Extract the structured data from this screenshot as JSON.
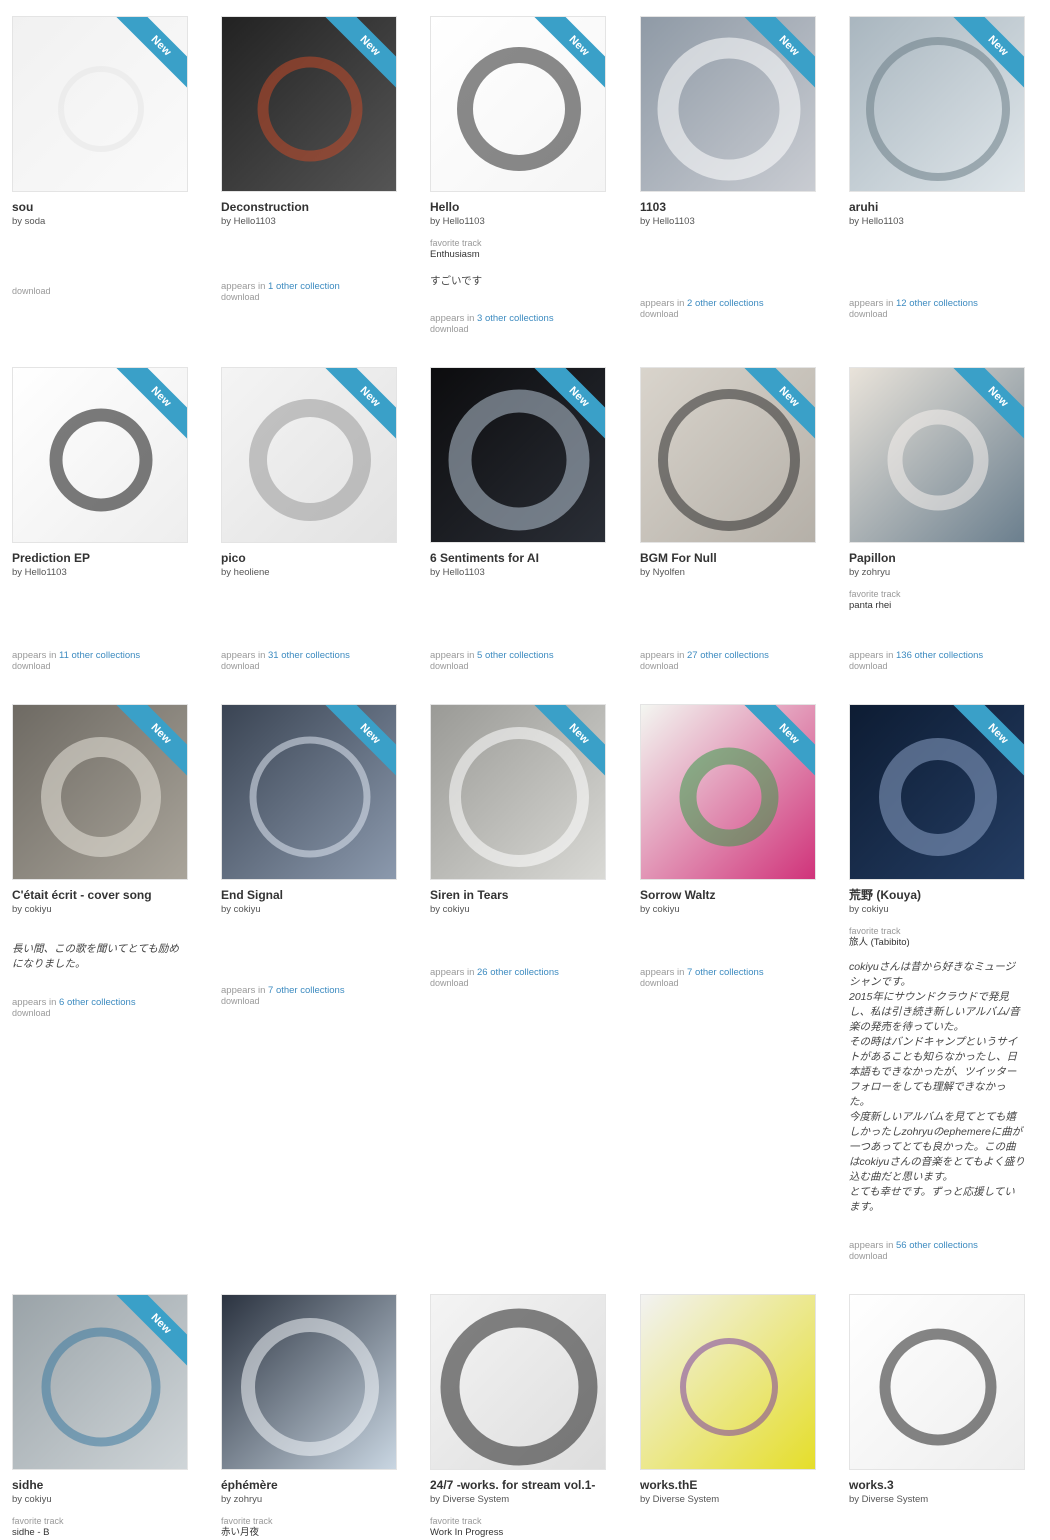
{
  "ribbon_label": "New",
  "labels": {
    "favorite_track": "favorite track",
    "appears_in": "appears in",
    "download": "download"
  },
  "items": [
    {
      "title": "sou",
      "artist": "by soda",
      "art": {
        "main": "#f1f1f1",
        "alt": "#fafafa",
        "fg": "#e6e6e6"
      }
    },
    {
      "title": "Deconstruction",
      "artist": "by Hello1103",
      "art": {
        "main": "#222222",
        "alt": "#555555",
        "fg": "#c24a2a"
      },
      "appears": "1 other collection"
    },
    {
      "title": "Hello",
      "artist": "by Hello1103",
      "art": {
        "main": "#ffffff",
        "alt": "#f5f5f5",
        "fg": "#2a2a2a"
      },
      "favorite": "Enthusiasm",
      "comment": "すごいです",
      "appears": "3 other collections"
    },
    {
      "title": "1103",
      "artist": "by Hello1103",
      "art": {
        "main": "#8f9aa6",
        "alt": "#c9ccd2",
        "fg": "#ffffff"
      },
      "appears": "2 other collections"
    },
    {
      "title": "aruhi",
      "artist": "by Hello1103",
      "art": {
        "main": "#a9b6bf",
        "alt": "#dfe6ea",
        "fg": "#6b7d86"
      },
      "appears": "12 other collections"
    },
    {
      "title": "Prediction EP",
      "artist": "by Hello1103",
      "art": {
        "main": "#ffffff",
        "alt": "#eeeeee",
        "fg": "#111111"
      },
      "appears": "11 other collections"
    },
    {
      "title": "pico",
      "artist": "by heoliene",
      "art": {
        "main": "#f4f4f4",
        "alt": "#e2e2e2",
        "fg": "#999999"
      },
      "appears": "31 other collections"
    },
    {
      "title": "6 Sentiments for AI",
      "artist": "by Hello1103",
      "art": {
        "main": "#0c0c0e",
        "alt": "#2a2e36",
        "fg": "#b7c4d4"
      },
      "appears": "5 other collections"
    },
    {
      "title": "BGM For Null",
      "artist": "by Nyolfen",
      "art": {
        "main": "#d9d4cc",
        "alt": "#b5b0a8",
        "fg": "#2b2b2b"
      },
      "appears": "27 other collections"
    },
    {
      "title": "Papillon",
      "artist": "by zohryu",
      "art": {
        "main": "#e9e3da",
        "alt": "#6b7f8e",
        "fg": "#f5f1ec"
      },
      "favorite": "panta rhei",
      "appears": "136 other collections"
    },
    {
      "title": "C'était écrit - cover song",
      "artist": "by cokiyu",
      "art": {
        "main": "#6e6a63",
        "alt": "#a9a49a",
        "fg": "#e8e4da"
      },
      "comment": "長い間、この歌を聞いてとても励めになりました。",
      "appears": "6 other collections"
    },
    {
      "title": "End Signal",
      "artist": "by cokiyu",
      "art": {
        "main": "#3a4453",
        "alt": "#8b99ad",
        "fg": "#dfe6f0"
      },
      "appears": "7 other collections"
    },
    {
      "title": "Siren in Tears",
      "artist": "by cokiyu",
      "art": {
        "main": "#9a9a96",
        "alt": "#d9d9d5",
        "fg": "#ffffff"
      },
      "appears": "26 other collections"
    },
    {
      "title": "Sorrow Waltz",
      "artist": "by cokiyu",
      "art": {
        "main": "#f3f6f1",
        "alt": "#d0337a",
        "fg": "#3b9b4a"
      },
      "appears": "7 other collections"
    },
    {
      "title": "荒野 (Kouya)",
      "artist": "by cokiyu",
      "art": {
        "main": "#0d1c33",
        "alt": "#243d63",
        "fg": "#8aa0c4"
      },
      "favorite": "旅人 (Tabibito)",
      "comment_long": "cokiyuさんは昔から好きなミュージシャンです。\n2015年にサウンドクラウドで発見し、私は引き続き新しいアルバム/音楽の発売を待っていた。\nその時はバンドキャンプというサイトがあることも知らなかったし、日本語もできなかったが、ツイッターフォローをしても理解できなかった。\n今度新しいアルバムを見てとても嬉しかったしzohryuのephemereに曲が一つあってとても良かった。この曲はcokiyuさんの音楽をとてもよく盛り込む曲だと思います。\nとても幸せです。ずっと応援しています。",
      "appears": "56 other collections"
    },
    {
      "title": "sidhe",
      "artist": "by cokiyu",
      "art": {
        "main": "#9aa3a8",
        "alt": "#cfd5d8",
        "fg": "#3c7aa0"
      },
      "favorite": "sidhe - B"
    },
    {
      "title": "éphémère",
      "artist": "by zohryu",
      "art": {
        "main": "#2b3340",
        "alt": "#c9d6e2",
        "fg": "#f2f6fa"
      },
      "favorite": "赤い月夜"
    },
    {
      "title": "24/7 -works. for stream vol.1-",
      "artist": "by Diverse System",
      "art": {
        "main": "#f4f4f4",
        "alt": "#dddddd",
        "fg": "#222222"
      },
      "favorite": "Work In Progress"
    },
    {
      "title": "works.thE",
      "artist": "by Diverse System",
      "art": {
        "main": "#f2f2f2",
        "alt": "#e5de2a",
        "fg": "#7b3fa0"
      }
    },
    {
      "title": "works.3",
      "artist": "by Diverse System",
      "art": {
        "main": "#ffffff",
        "alt": "#eeeeee",
        "fg": "#222222"
      }
    }
  ]
}
